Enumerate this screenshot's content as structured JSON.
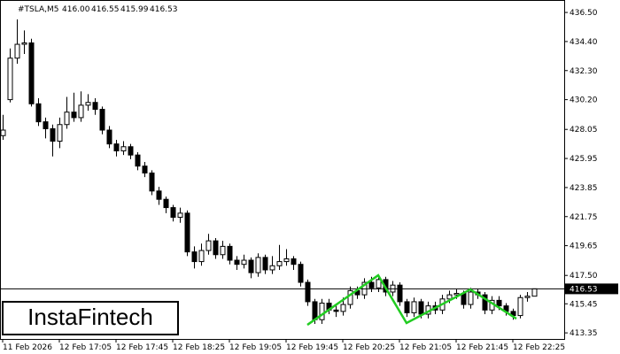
{
  "chart_data": {
    "type": "candlestick",
    "header": {
      "symbol": "#TSLA,M5",
      "ohlc": [
        "416.00",
        "416.55",
        "415.99",
        "416.53"
      ]
    },
    "logo": "InstaFintech",
    "categories": [
      "11 Feb 2026",
      null,
      null,
      null,
      null,
      null,
      null,
      null,
      "12 Feb 17:05",
      null,
      null,
      null,
      null,
      null,
      null,
      null,
      "12 Feb 17:45",
      null,
      null,
      null,
      null,
      null,
      null,
      null,
      "12 Feb 18:25",
      null,
      null,
      null,
      null,
      null,
      null,
      null,
      "12 Feb 19:05",
      null,
      null,
      null,
      null,
      null,
      null,
      null,
      "12 Feb 19:45",
      null,
      null,
      null,
      null,
      null,
      null,
      null,
      "12 Feb 20:25",
      null,
      null,
      null,
      null,
      null,
      null,
      null,
      "12 Feb 21:05",
      null,
      null,
      null,
      null,
      null,
      null,
      null,
      "12 Feb 21:45",
      null,
      null,
      null,
      null,
      null,
      null,
      null,
      "12 Feb 22:25",
      null,
      null,
      null
    ],
    "open": [
      427.6,
      430.2,
      433.2,
      434.2,
      434.3,
      429.9,
      428.6,
      428.1,
      427.2,
      428.4,
      429.3,
      428.9,
      429.8,
      430.0,
      429.5,
      428.0,
      427.0,
      426.5,
      426.8,
      426.2,
      425.4,
      424.9,
      423.6,
      423.0,
      422.4,
      421.7,
      422.0,
      419.2,
      418.5,
      419.3,
      420.0,
      419.0,
      419.6,
      418.6,
      418.3,
      418.6,
      417.7,
      418.8,
      417.9,
      418.2,
      418.5,
      418.7,
      418.3,
      417.0,
      415.6,
      414.3,
      415.5,
      415.0,
      414.9,
      415.4,
      416.4,
      416.1,
      417.0,
      416.6,
      417.2,
      416.3,
      416.8,
      415.6,
      414.8,
      415.6,
      414.7,
      415.3,
      415.0,
      415.8,
      416.1,
      416.2,
      415.4,
      416.3,
      416.1,
      415.0,
      415.7,
      415.3,
      414.9,
      414.6,
      415.9,
      416.0
    ],
    "high": [
      429.1,
      433.9,
      436.0,
      435.2,
      434.6,
      430.3,
      428.9,
      428.4,
      428.9,
      430.4,
      430.7,
      430.8,
      430.6,
      430.3,
      429.7,
      428.3,
      427.3,
      427.2,
      427.0,
      426.4,
      425.7,
      425.1,
      423.9,
      423.2,
      422.6,
      422.4,
      422.2,
      419.6,
      419.8,
      420.5,
      420.2,
      420.0,
      419.8,
      418.9,
      419.0,
      418.8,
      419.1,
      419.0,
      418.9,
      419.7,
      419.4,
      418.9,
      418.5,
      417.2,
      415.8,
      415.8,
      415.8,
      415.4,
      415.9,
      416.7,
      416.7,
      417.3,
      417.4,
      417.5,
      417.4,
      417.1,
      417.0,
      415.8,
      415.9,
      415.8,
      415.6,
      415.6,
      416.1,
      416.4,
      416.5,
      416.4,
      416.6,
      416.5,
      416.3,
      416.0,
      416.0,
      415.5,
      415.1,
      416.1,
      416.3,
      416.55
    ],
    "low": [
      427.3,
      430.0,
      432.8,
      433.5,
      429.7,
      428.3,
      427.4,
      426.1,
      426.7,
      428.1,
      428.6,
      428.6,
      429.4,
      429.1,
      427.7,
      426.7,
      426.1,
      426.2,
      425.9,
      425.1,
      424.6,
      423.3,
      422.6,
      422.0,
      421.4,
      421.3,
      418.9,
      418.0,
      418.2,
      419.0,
      418.7,
      418.7,
      418.3,
      417.9,
      418.0,
      417.3,
      417.4,
      417.6,
      417.6,
      417.9,
      418.2,
      417.9,
      416.7,
      415.3,
      414.0,
      414.0,
      414.7,
      414.5,
      414.6,
      415.1,
      415.8,
      415.8,
      416.3,
      416.3,
      416.0,
      416.0,
      415.3,
      414.5,
      414.5,
      414.4,
      414.4,
      414.7,
      414.7,
      415.5,
      415.8,
      415.1,
      415.1,
      415.8,
      414.7,
      414.7,
      415.0,
      414.6,
      414.3,
      414.4,
      415.6,
      415.99
    ],
    "close": [
      428.0,
      433.2,
      434.2,
      434.3,
      429.9,
      428.6,
      428.1,
      427.2,
      428.4,
      429.3,
      428.9,
      429.8,
      430.0,
      429.5,
      428.0,
      427.0,
      426.5,
      426.8,
      426.2,
      425.4,
      424.9,
      423.6,
      423.0,
      422.4,
      421.7,
      422.0,
      419.2,
      418.5,
      419.3,
      420.0,
      419.0,
      419.6,
      418.6,
      418.3,
      418.6,
      417.7,
      418.8,
      417.9,
      418.2,
      418.5,
      418.7,
      418.3,
      417.0,
      415.6,
      414.3,
      415.5,
      415.0,
      414.9,
      415.4,
      416.4,
      416.1,
      417.0,
      416.6,
      417.2,
      416.3,
      416.8,
      415.6,
      414.8,
      415.6,
      414.7,
      415.3,
      415.0,
      415.8,
      416.1,
      416.2,
      415.4,
      416.3,
      416.1,
      415.0,
      415.7,
      415.3,
      414.9,
      414.6,
      415.9,
      416.0,
      416.53
    ],
    "pattern_line": {
      "color": "#22cc22",
      "x": [
        43,
        53,
        57,
        66,
        72.5
      ],
      "values": [
        413.93,
        417.51,
        414.06,
        416.49,
        414.38
      ]
    },
    "current_price": 416.53,
    "ylim": [
      412.91,
      437.4
    ],
    "yticks": [
      {
        "value": 436.5,
        "label": "436.50"
      },
      {
        "value": 434.4,
        "label": "434.40"
      },
      {
        "value": 432.3,
        "label": "432.30"
      },
      {
        "value": 430.2,
        "label": "430.20"
      },
      {
        "value": 428.05,
        "label": "428.05"
      },
      {
        "value": 425.95,
        "label": "425.95"
      },
      {
        "value": 423.85,
        "label": "423.85"
      },
      {
        "value": 421.75,
        "label": "421.75"
      },
      {
        "value": 419.65,
        "label": "419.65"
      },
      {
        "value": 417.5,
        "label": "417.50"
      },
      {
        "value": 415.45,
        "label": "415.45"
      },
      {
        "value": 413.35,
        "label": "413.35"
      }
    ]
  }
}
